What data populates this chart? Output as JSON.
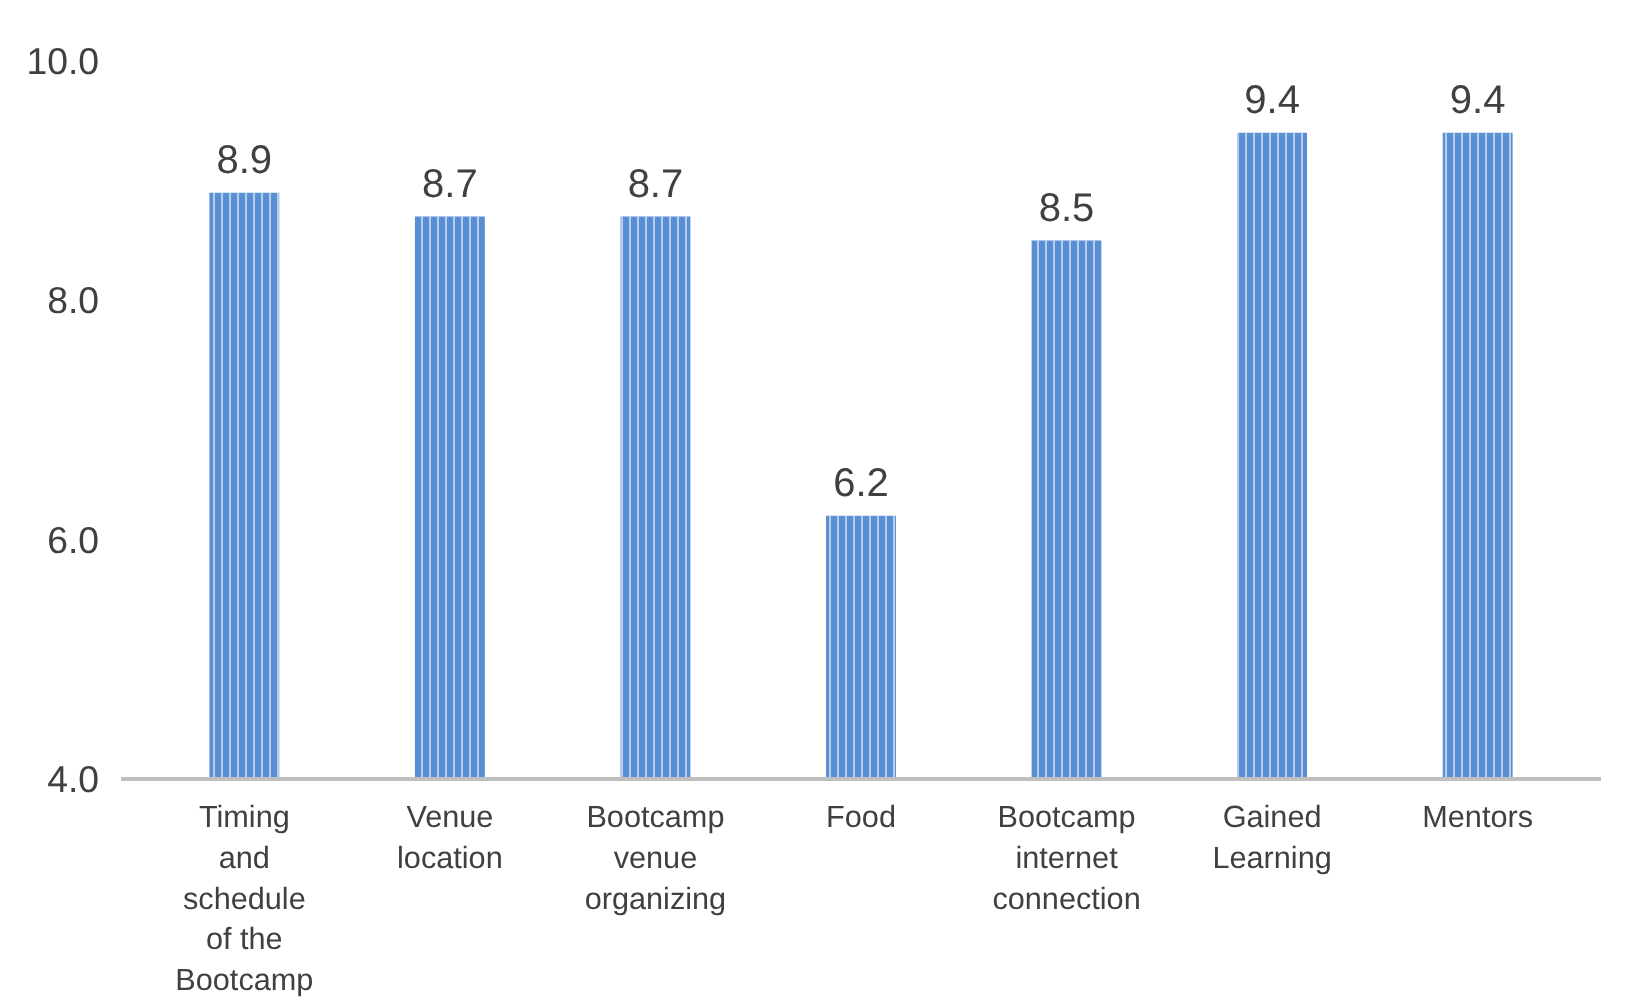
{
  "chart_data": {
    "type": "bar",
    "categories": [
      "Timing and schedule of the Bootcamp",
      "Venue location",
      "Bootcamp venue organizing",
      "Food",
      "Bootcamp internet connection",
      "Gained Learning",
      "Mentors"
    ],
    "values": [
      8.9,
      8.7,
      8.7,
      6.2,
      8.5,
      9.4,
      9.4
    ],
    "color": "#5b8fd3",
    "ylim": [
      4,
      10
    ],
    "yticks": [
      {
        "value": 4,
        "label": "4.0"
      },
      {
        "value": 6,
        "label": "6.0"
      },
      {
        "value": 8,
        "label": "8.0"
      },
      {
        "value": 10,
        "label": "10.0"
      }
    ],
    "data_labels": true,
    "grid": false
  }
}
